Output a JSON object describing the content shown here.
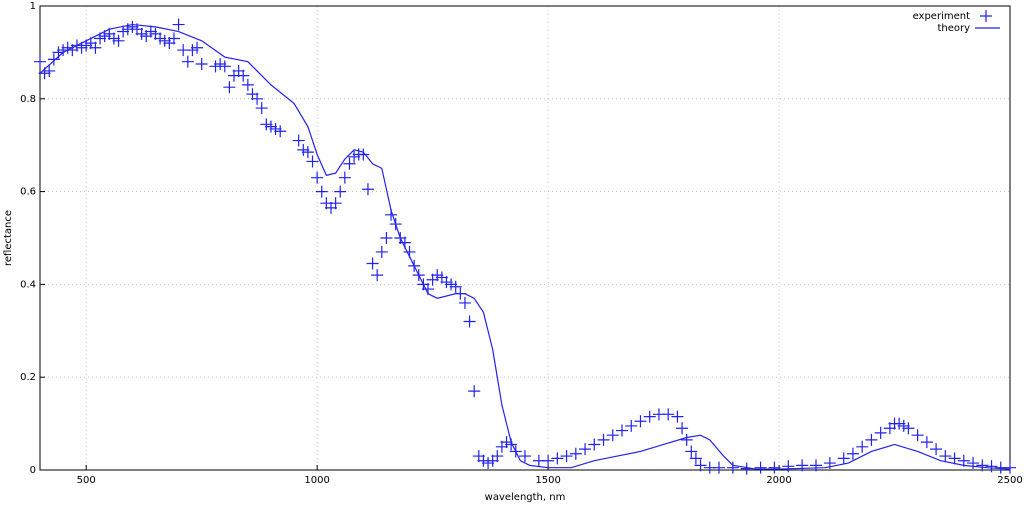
{
  "chart_data": {
    "type": "scatter_line",
    "xlabel": "wavelength, nm",
    "ylabel": "reflectance",
    "xlim": [
      400,
      2500
    ],
    "ylim": [
      0,
      1
    ],
    "xticks": [
      500,
      1000,
      1500,
      2000,
      2500
    ],
    "yticks": [
      0,
      0.2,
      0.4,
      0.6,
      0.8,
      1
    ],
    "grid": true,
    "legend": "top-right",
    "series": [
      {
        "name": "experiment",
        "kind": "points",
        "color": "#2222ee",
        "x": [
          400,
          410,
          420,
          430,
          440,
          450,
          460,
          470,
          480,
          490,
          500,
          510,
          520,
          530,
          540,
          550,
          560,
          570,
          580,
          590,
          600,
          610,
          620,
          630,
          640,
          650,
          660,
          670,
          680,
          690,
          700,
          710,
          720,
          730,
          740,
          750,
          780,
          790,
          800,
          810,
          820,
          830,
          840,
          850,
          860,
          870,
          880,
          890,
          900,
          910,
          920,
          960,
          970,
          980,
          990,
          1000,
          1010,
          1020,
          1030,
          1040,
          1050,
          1060,
          1070,
          1080,
          1090,
          1100,
          1110,
          1120,
          1130,
          1140,
          1150,
          1160,
          1170,
          1180,
          1190,
          1200,
          1210,
          1220,
          1230,
          1240,
          1250,
          1260,
          1270,
          1280,
          1290,
          1300,
          1310,
          1320,
          1330,
          1340,
          1350,
          1360,
          1370,
          1380,
          1390,
          1400,
          1410,
          1420,
          1430,
          1450,
          1480,
          1500,
          1520,
          1540,
          1560,
          1580,
          1600,
          1620,
          1640,
          1660,
          1680,
          1700,
          1720,
          1740,
          1760,
          1780,
          1790,
          1800,
          1810,
          1820,
          1830,
          1850,
          1870,
          1900,
          1930,
          1960,
          1990,
          2020,
          2050,
          2080,
          2110,
          2140,
          2160,
          2180,
          2200,
          2220,
          2240,
          2250,
          2260,
          2270,
          2280,
          2300,
          2320,
          2340,
          2360,
          2380,
          2400,
          2420,
          2440,
          2460,
          2480,
          2500
        ],
        "values": [
          0.88,
          0.855,
          0.86,
          0.885,
          0.9,
          0.905,
          0.91,
          0.905,
          0.915,
          0.91,
          0.915,
          0.92,
          0.91,
          0.93,
          0.935,
          0.94,
          0.93,
          0.925,
          0.945,
          0.95,
          0.955,
          0.95,
          0.94,
          0.935,
          0.945,
          0.94,
          0.93,
          0.925,
          0.92,
          0.93,
          0.96,
          0.905,
          0.88,
          0.905,
          0.91,
          0.875,
          0.87,
          0.875,
          0.87,
          0.825,
          0.85,
          0.86,
          0.85,
          0.83,
          0.81,
          0.8,
          0.78,
          0.745,
          0.74,
          0.735,
          0.73,
          0.71,
          0.69,
          0.685,
          0.665,
          0.63,
          0.6,
          0.575,
          0.565,
          0.575,
          0.6,
          0.63,
          0.66,
          0.675,
          0.68,
          0.68,
          0.605,
          0.445,
          0.42,
          0.47,
          0.5,
          0.55,
          0.53,
          0.5,
          0.49,
          0.47,
          0.44,
          0.42,
          0.4,
          0.39,
          0.41,
          0.42,
          0.415,
          0.405,
          0.4,
          0.395,
          0.38,
          0.36,
          0.32,
          0.17,
          0.03,
          0.02,
          0.015,
          0.02,
          0.03,
          0.05,
          0.06,
          0.055,
          0.04,
          0.03,
          0.02,
          0.02,
          0.025,
          0.03,
          0.035,
          0.045,
          0.055,
          0.065,
          0.075,
          0.085,
          0.095,
          0.105,
          0.115,
          0.12,
          0.12,
          0.115,
          0.09,
          0.065,
          0.04,
          0.025,
          0.01,
          0.005,
          0.005,
          0.005,
          0.003,
          0.005,
          0.005,
          0.008,
          0.01,
          0.01,
          0.015,
          0.025,
          0.035,
          0.05,
          0.065,
          0.08,
          0.09,
          0.1,
          0.1,
          0.095,
          0.09,
          0.075,
          0.06,
          0.045,
          0.03,
          0.025,
          0.02,
          0.015,
          0.01,
          0.008,
          0.005,
          0.005
        ]
      },
      {
        "name": "theory",
        "kind": "line",
        "color": "#2222ee",
        "x": [
          400,
          450,
          500,
          550,
          600,
          650,
          700,
          750,
          800,
          850,
          880,
          900,
          950,
          980,
          1000,
          1020,
          1040,
          1060,
          1080,
          1100,
          1120,
          1140,
          1160,
          1180,
          1200,
          1220,
          1240,
          1260,
          1280,
          1300,
          1320,
          1340,
          1360,
          1380,
          1400,
          1420,
          1440,
          1460,
          1500,
          1550,
          1600,
          1650,
          1700,
          1750,
          1800,
          1830,
          1850,
          1880,
          1900,
          1950,
          2000,
          2100,
          2150,
          2200,
          2250,
          2300,
          2350,
          2400,
          2450,
          2500
        ],
        "values": [
          0.855,
          0.9,
          0.925,
          0.95,
          0.96,
          0.955,
          0.945,
          0.925,
          0.89,
          0.88,
          0.85,
          0.83,
          0.79,
          0.74,
          0.68,
          0.635,
          0.64,
          0.67,
          0.69,
          0.685,
          0.66,
          0.65,
          0.56,
          0.5,
          0.46,
          0.42,
          0.38,
          0.37,
          0.375,
          0.38,
          0.38,
          0.37,
          0.34,
          0.26,
          0.14,
          0.06,
          0.02,
          0.01,
          0.005,
          0.005,
          0.02,
          0.03,
          0.04,
          0.055,
          0.07,
          0.075,
          0.065,
          0.03,
          0.01,
          0.002,
          0.002,
          0.005,
          0.015,
          0.04,
          0.055,
          0.04,
          0.02,
          0.01,
          0.005,
          0.002
        ]
      }
    ]
  }
}
